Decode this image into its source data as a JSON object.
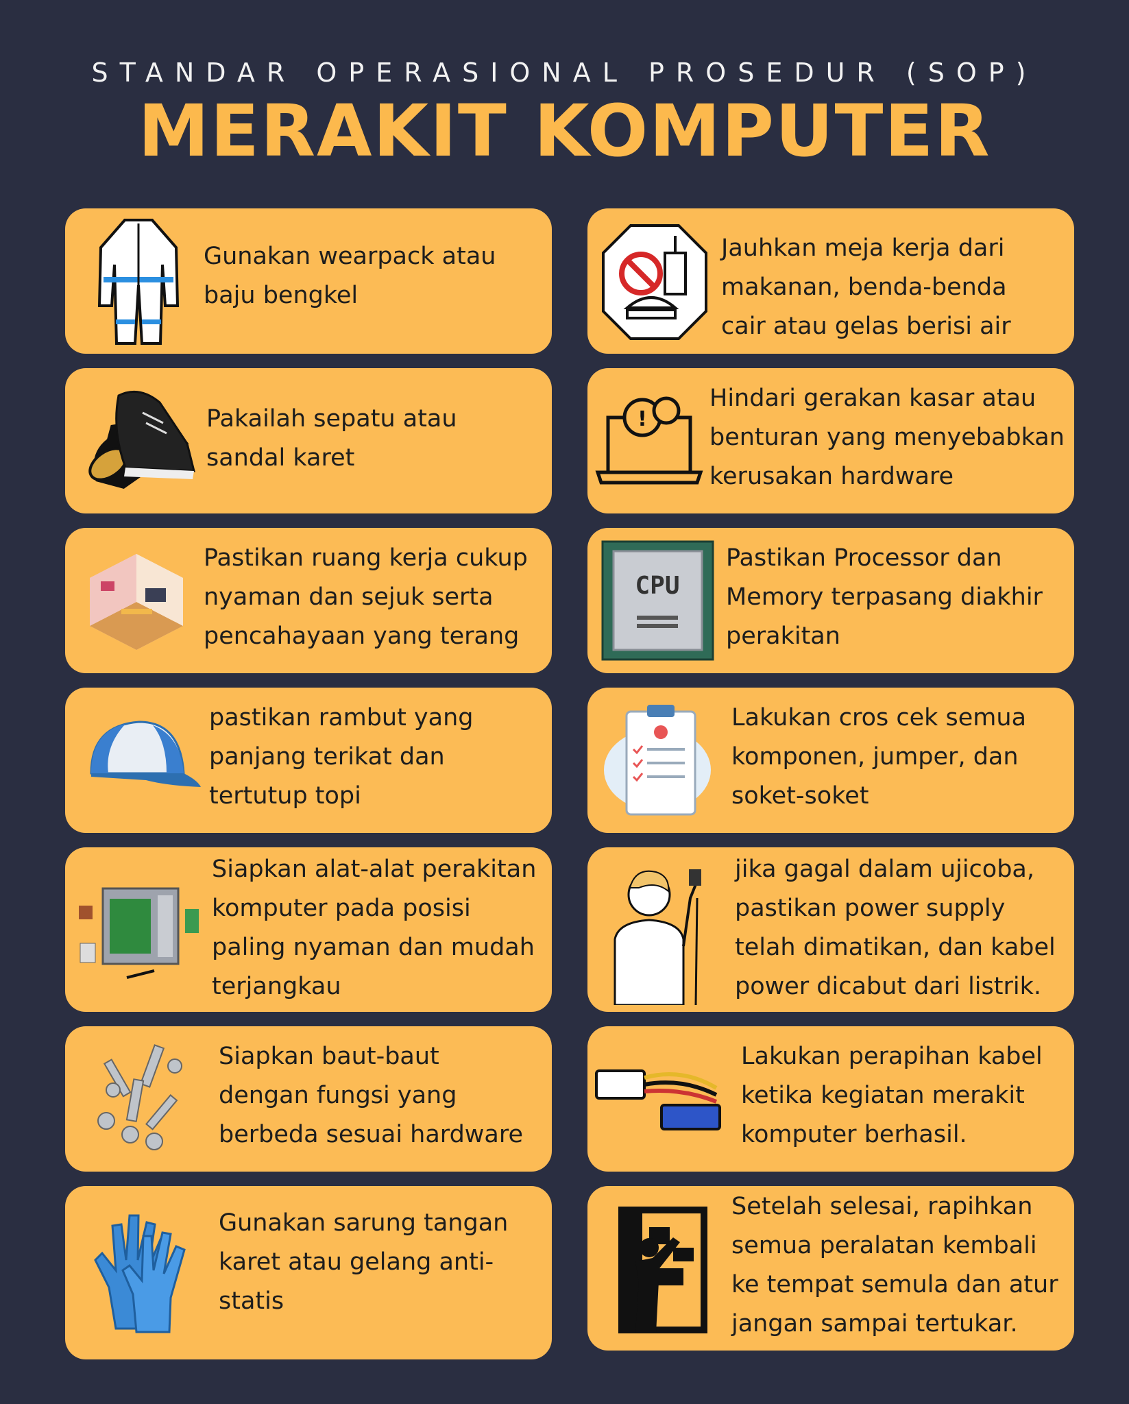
{
  "header": {
    "subtitle": "STANDAR OPERASIONAL PROSEDUR (SOP)",
    "title": "MERAKIT KOMPUTER"
  },
  "colors": {
    "background": "#2a2e41",
    "card": "#fcbb55",
    "title": "#fcb94d"
  },
  "left_cards": [
    {
      "icon": "wearpack-icon",
      "text": "Gunakan wearpack atau\nbaju bengkel"
    },
    {
      "icon": "shoe-icon",
      "text": "Pakailah sepatu atau\nsandal karet"
    },
    {
      "icon": "room-icon",
      "text": "Pastikan ruang kerja cukup\nnyaman dan sejuk  serta\npencahayaan yang terang"
    },
    {
      "icon": "cap-icon",
      "text": " pastikan rambut yang\npanjang terikat dan\ntertutup topi"
    },
    {
      "icon": "computer-case-icon",
      "text": "Siapkan alat-alat perakitan\nkomputer pada posisi\npaling nyaman dan mudah\nterjangkau"
    },
    {
      "icon": "bolts-icon",
      "text": "Siapkan baut-baut\ndengan fungsi yang\nberbeda sesuai hardware"
    },
    {
      "icon": "gloves-icon",
      "text": "Gunakan sarung tangan\nkaret atau gelang anti-\nstatis"
    }
  ],
  "right_cards": [
    {
      "icon": "no-food-icon",
      "text": "Jauhkan meja kerja dari\nmakanan, benda-benda\ncair atau gelas berisi air"
    },
    {
      "icon": "laptop-gear-icon",
      "text": "Hindari  gerakan kasar atau\nbenturan yang menyebabkan\nkerusakan hardware"
    },
    {
      "icon": "cpu-icon",
      "text": "Pastikan Processor dan\nMemory terpasang diakhir\nperakitan"
    },
    {
      "icon": "checklist-icon",
      "text": "Lakukan cros cek semua\nkomponen, jumper, dan\nsoket-soket"
    },
    {
      "icon": "person-plug-icon",
      "text": "jika gagal dalam ujicoba,\npastikan power supply\ntelah dimatikan, dan kabel\npower dicabut dari listrik."
    },
    {
      "icon": "cable-icon",
      "text": "Lakukan perapihan kabel\nketika kegiatan merakit\nkomputer berhasil."
    },
    {
      "icon": "cabinet-icon",
      "text": " Setelah selesai, rapihkan\nsemua peralatan kembali\nke tempat semula dan atur\njangan sampai tertukar."
    }
  ],
  "cpu_label": "CPU"
}
